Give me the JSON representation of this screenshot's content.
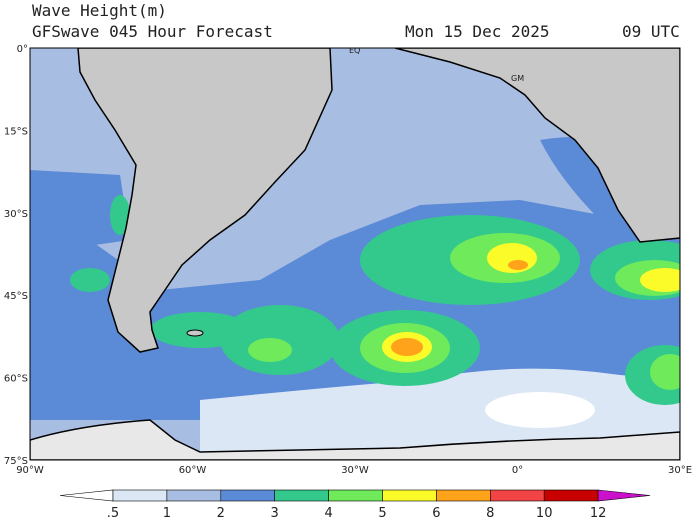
{
  "header": {
    "title": "Wave Height(m)",
    "subtitle": "GFSwave 045 Hour Forecast",
    "date": "Mon 15 Dec 2025",
    "time": "09 UTC"
  },
  "map": {
    "lat_labels": [
      "0°",
      "15°S",
      "30°S",
      "45°S",
      "60°S",
      "75°S"
    ],
    "lon_labels": [
      "90°W",
      "60°W",
      "30°W",
      "0°",
      "30°E"
    ],
    "place_labels": [
      "EQ",
      "GM"
    ]
  },
  "legend": {
    "labels": [
      ".5",
      "1",
      "2",
      "3",
      "4",
      "5",
      "6",
      "8",
      "10",
      "12"
    ],
    "colors": [
      "#ffffff",
      "#dce7f5",
      "#a8bde2",
      "#5b8ad6",
      "#33c98d",
      "#6eea5a",
      "#fbfb2a",
      "#ffa31a",
      "#f24444",
      "#c80000",
      "#cc11cc"
    ]
  }
}
